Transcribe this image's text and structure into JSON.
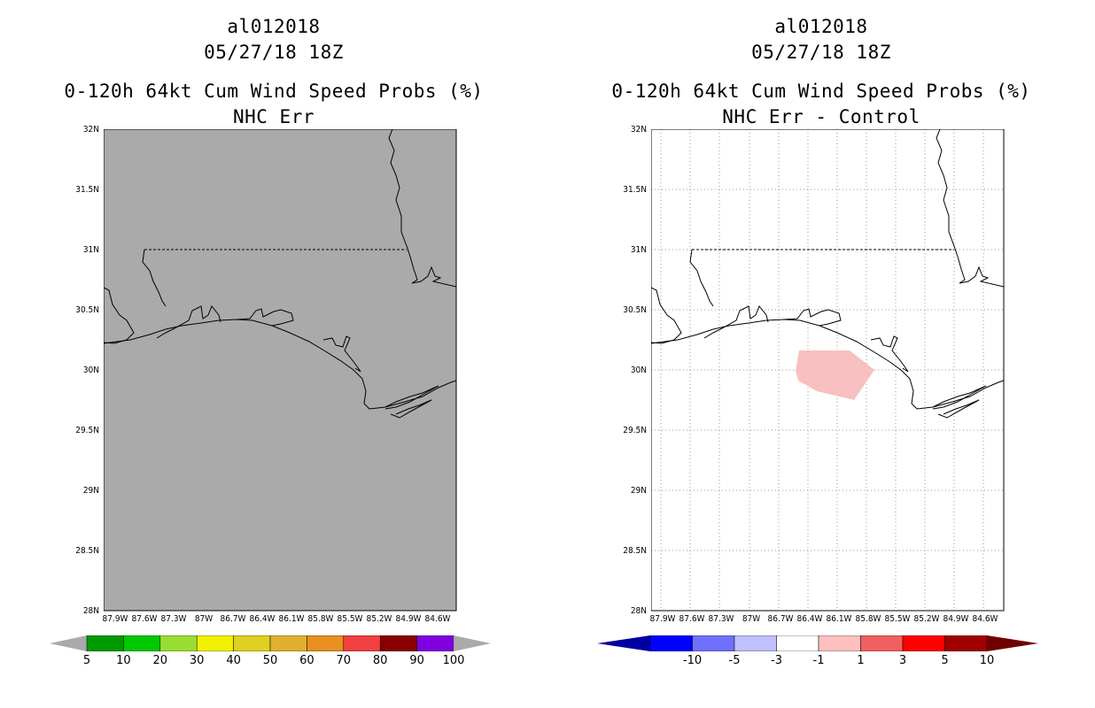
{
  "left_panel": {
    "storm_id": "al012018",
    "datetime": "05/27/18 18Z",
    "product_title": "0-120h 64kt Cum Wind Speed Probs (%)",
    "subtitle": "NHC Err",
    "background_color": "#aaaaaa",
    "colorbar": {
      "labels": [
        "5",
        "10",
        "20",
        "30",
        "40",
        "50",
        "60",
        "70",
        "80",
        "90",
        "100"
      ],
      "colors": [
        "#009a00",
        "#00c800",
        "#99dd33",
        "#f0f000",
        "#e0d020",
        "#e0b030",
        "#e89020",
        "#f04040",
        "#880000",
        "#8000e0"
      ]
    }
  },
  "right_panel": {
    "storm_id": "al012018",
    "datetime": "05/27/18 18Z",
    "product_title": "0-120h 64kt Cum Wind Speed Probs (%)",
    "subtitle": "NHC Err - Control",
    "background_color": "#ffffff",
    "shaded_region_color": "#f8c0c0",
    "colorbar": {
      "labels": [
        "-10",
        "-5",
        "-3",
        "-1",
        "1",
        "3",
        "5",
        "10"
      ],
      "colors": [
        "#0000a0",
        "#0000ff",
        "#7070ff",
        "#c0c0ff",
        "#ffffff",
        "#ffc0c0",
        "#f06060",
        "#ff0000",
        "#a00000",
        "#700000"
      ]
    }
  },
  "axes": {
    "lat_labels": [
      "32N",
      "31.5N",
      "31N",
      "30.5N",
      "30N",
      "29.5N",
      "29N",
      "28.5N",
      "28N"
    ],
    "lon_labels": [
      "87.9W",
      "87.6W",
      "87.3W",
      "87W",
      "86.7W",
      "86.4W",
      "86.1W",
      "85.8W",
      "85.5W",
      "85.2W",
      "84.9W",
      "84.6W"
    ]
  }
}
